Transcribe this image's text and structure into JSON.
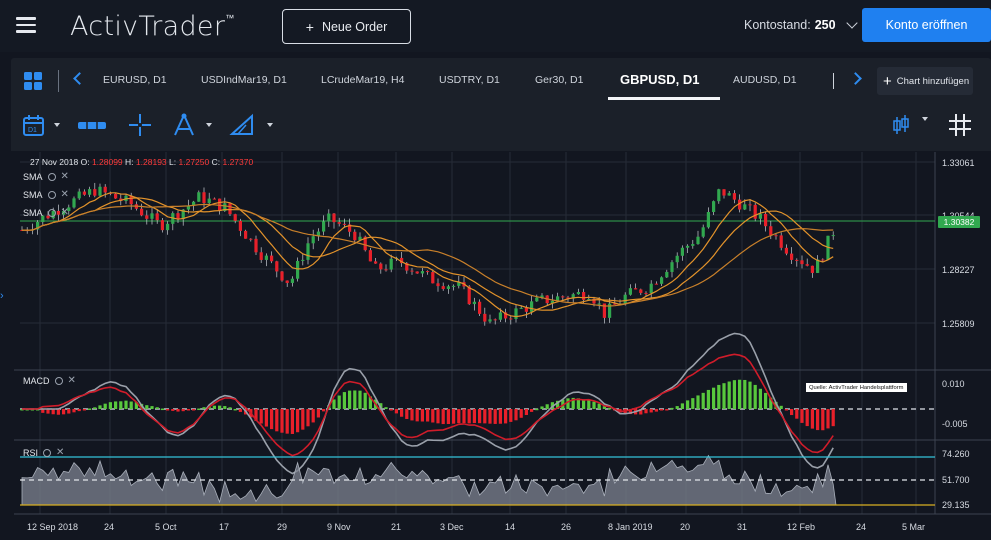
{
  "header": {
    "brand": "ActivTrader",
    "brand_mark": "™",
    "new_order_label": "Neue Order",
    "balance_label": "Kontostand:",
    "balance_value": "250",
    "open_account_label": "Konto eröffnen"
  },
  "tabs": [
    {
      "label": "EURUSD, D1"
    },
    {
      "label": "USDIndMar19, D1"
    },
    {
      "label": "LCrudeMar19, H4"
    },
    {
      "label": "USDTRY, D1"
    },
    {
      "label": "Ger30, D1"
    },
    {
      "label": "GBPUSD, D1",
      "active": true
    },
    {
      "label": "AUDUSD, D1"
    }
  ],
  "add_chart_label": "Chart hinzufügen",
  "ohlc": {
    "date": "27 Nov 2018",
    "o_label": "O:",
    "o_value": "1.28099",
    "h_label": "H:",
    "h_value": "1.28193",
    "l_label": "L:",
    "l_value": "1.27250",
    "c_label": "C:",
    "c_value": "1.27370"
  },
  "indicators": {
    "sma1": "SMA",
    "sma2": "SMA",
    "sma3": "SMA",
    "macd": "MACD",
    "rsi": "RSI"
  },
  "source_note": "Quelle: ActivTrader Handelsplattform",
  "price_axis": {
    "main": [
      "1.33061",
      "1.30544",
      "1.28227",
      "1.25809"
    ],
    "current_price": "1.30382",
    "macd": [
      "0.010",
      "-0.005"
    ],
    "rsi": [
      "74.260",
      "51.700",
      "29.135"
    ]
  },
  "date_axis": [
    "12 Sep 2018",
    "24",
    "5 Oct",
    "17",
    "29",
    "9 Nov",
    "21",
    "3 Dec",
    "14",
    "26",
    "8 Jan 2019",
    "20",
    "31",
    "12 Feb",
    "24",
    "5 Mar"
  ],
  "colors": {
    "accent": "#1f80f0",
    "bull": "#31a84f",
    "bear": "#e8202a",
    "sma": "#e3932b",
    "rsi_upper": "#34c3d9",
    "rsi_lower": "#d9b022"
  },
  "series": {
    "gbpusd_close_approx": [
      1.305,
      1.31,
      1.315,
      1.32,
      1.31,
      1.3,
      1.305,
      1.29,
      1.275,
      1.28,
      1.295,
      1.285,
      1.28,
      1.27,
      1.265,
      1.255,
      1.25,
      1.255,
      1.265,
      1.27,
      1.28,
      1.285,
      1.29,
      1.305,
      1.315,
      1.31,
      1.295,
      1.29,
      1.285,
      1.3
    ]
  }
}
